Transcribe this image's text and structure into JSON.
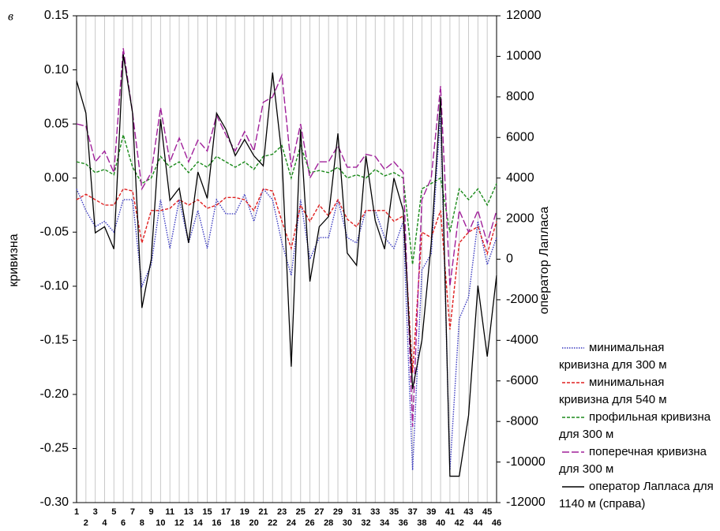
{
  "chart_data": {
    "type": "line",
    "panel_label": "в",
    "y_label": "кривизна",
    "y2_label": "оператор Лапласа",
    "x": [
      1,
      2,
      3,
      4,
      5,
      6,
      7,
      8,
      9,
      10,
      11,
      12,
      13,
      14,
      15,
      16,
      17,
      18,
      19,
      20,
      21,
      22,
      23,
      24,
      25,
      26,
      27,
      28,
      29,
      30,
      31,
      32,
      33,
      34,
      35,
      36,
      37,
      38,
      39,
      40,
      41,
      42,
      43,
      44,
      45,
      46
    ],
    "xlim": [
      1,
      46
    ],
    "xticks": [
      1,
      2,
      3,
      4,
      5,
      6,
      7,
      8,
      9,
      10,
      11,
      12,
      13,
      14,
      15,
      16,
      17,
      18,
      19,
      20,
      21,
      22,
      23,
      24,
      25,
      26,
      27,
      28,
      29,
      30,
      31,
      32,
      33,
      34,
      35,
      36,
      37,
      38,
      39,
      40,
      41,
      42,
      43,
      44,
      45,
      46
    ],
    "ylim": [
      -0.3,
      0.15
    ],
    "yticks": [
      0.15,
      {
        "value": 0.1,
        "label": "0.10"
      },
      0.05,
      {
        "value": 0.0,
        "label": "0.00"
      },
      -0.05,
      {
        "value": -0.1,
        "label": "-0.10"
      },
      -0.15,
      {
        "value": -0.2,
        "label": "-0.20"
      },
      -0.25,
      {
        "value": -0.3,
        "label": "-0.30"
      }
    ],
    "y2lim": [
      -12000,
      12000
    ],
    "y2ticks": [
      12000,
      10000,
      8000,
      6000,
      4000,
      2000,
      0,
      -2000,
      -4000,
      -6000,
      -8000,
      -10000,
      -12000
    ],
    "grid": "x",
    "legend": "lower right",
    "series": [
      {
        "name": "минимальная кривизна для 300 м",
        "color": "#3a3ac0",
        "line_style": "dotted",
        "values": [
          -0.01,
          -0.03,
          -0.045,
          -0.04,
          -0.05,
          -0.02,
          -0.02,
          -0.1,
          -0.08,
          -0.02,
          -0.065,
          -0.02,
          -0.06,
          -0.03,
          -0.065,
          -0.02,
          -0.033,
          -0.033,
          -0.015,
          -0.04,
          -0.01,
          -0.02,
          -0.06,
          -0.09,
          -0.02,
          -0.075,
          -0.055,
          -0.055,
          -0.02,
          -0.055,
          -0.06,
          -0.03,
          -0.03,
          -0.055,
          -0.065,
          -0.04,
          -0.27,
          -0.085,
          -0.07,
          0.06,
          -0.27,
          -0.13,
          -0.11,
          -0.04,
          -0.08,
          -0.055
        ]
      },
      {
        "name": "минимальная кривизна для 540 м",
        "color": "#e02020",
        "line_style": "dashed",
        "values": [
          -0.02,
          -0.015,
          -0.02,
          -0.025,
          -0.025,
          -0.01,
          -0.012,
          -0.06,
          -0.03,
          -0.03,
          -0.028,
          -0.02,
          -0.025,
          -0.02,
          -0.028,
          -0.025,
          -0.018,
          -0.018,
          -0.02,
          -0.03,
          -0.01,
          -0.012,
          -0.04,
          -0.065,
          -0.025,
          -0.04,
          -0.025,
          -0.035,
          -0.02,
          -0.038,
          -0.045,
          -0.03,
          -0.03,
          -0.03,
          -0.04,
          -0.035,
          -0.18,
          -0.05,
          -0.055,
          -0.03,
          -0.14,
          -0.06,
          -0.05,
          -0.045,
          -0.07,
          -0.04
        ]
      },
      {
        "name": "профильная кривизна для 300 м",
        "color": "#1a8a1a",
        "line_style": "dashed",
        "values": [
          0.015,
          0.013,
          0.005,
          0.008,
          0.003,
          0.04,
          0.01,
          -0.005,
          0.0,
          0.02,
          0.01,
          0.015,
          0.005,
          0.015,
          0.01,
          0.02,
          0.015,
          0.01,
          0.015,
          0.008,
          0.02,
          0.022,
          0.03,
          0.0,
          0.03,
          0.005,
          0.007,
          0.005,
          0.01,
          0.0,
          0.003,
          0.0,
          0.008,
          0.002,
          0.005,
          0.0,
          -0.08,
          -0.01,
          -0.005,
          0.0,
          -0.05,
          -0.01,
          -0.02,
          -0.01,
          -0.025,
          -0.005
        ]
      },
      {
        "name": "поперечная кривизна для 300 м",
        "color": "#a0209a",
        "line_style": "longdash",
        "values": [
          0.05,
          0.048,
          0.015,
          0.025,
          0.005,
          0.12,
          0.06,
          -0.01,
          0.005,
          0.065,
          0.015,
          0.037,
          0.015,
          0.035,
          0.025,
          0.058,
          0.04,
          0.025,
          0.043,
          0.025,
          0.07,
          0.075,
          0.095,
          0.01,
          0.05,
          0.0,
          0.015,
          0.015,
          0.03,
          0.01,
          0.01,
          0.022,
          0.02,
          0.008,
          0.015,
          0.005,
          -0.23,
          -0.02,
          0.0,
          0.085,
          -0.1,
          -0.03,
          -0.05,
          -0.03,
          -0.06,
          -0.03
        ]
      },
      {
        "name": "оператор Лапласа для 1140 м (справа)",
        "color": "#000000",
        "line_style": "solid",
        "axis": "y2",
        "values": [
          8800,
          7200,
          1300,
          1600,
          500,
          10100,
          7200,
          -2400,
          0,
          6900,
          2900,
          3500,
          800,
          4300,
          3000,
          7200,
          6400,
          5100,
          5900,
          5100,
          4600,
          9200,
          5100,
          -5300,
          6400,
          -1100,
          1600,
          2100,
          6200,
          300,
          -300,
          5100,
          1900,
          500,
          4000,
          2400,
          -6400,
          -4000,
          800,
          8000,
          -10700,
          -10700,
          -7700,
          -1300,
          -4800,
          -800
        ]
      }
    ]
  }
}
